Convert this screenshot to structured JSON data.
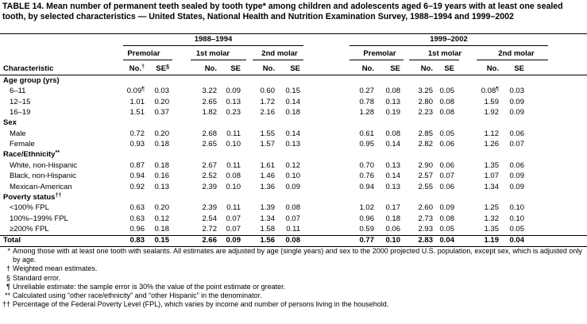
{
  "title": "TABLE 14. Mean number of permanent teeth sealed by tooth type* among children and adolescents aged 6–19 years with at least one sealed tooth, by selected characteristics — United States, National Health and Nutrition Examination Survey, 1988–1994 and 1999–2002",
  "periods": [
    {
      "label": "1988–1994",
      "tooth_types": [
        "Premolar",
        "1st molar",
        "2nd molar"
      ]
    },
    {
      "label": "1999–2002",
      "tooth_types": [
        "Premolar",
        "1st molar",
        "2nd molar"
      ]
    }
  ],
  "characteristic_header": "Characteristic",
  "columns": [
    {
      "label": "No.",
      "note": "†"
    },
    {
      "label": "SE",
      "note": "§"
    },
    {
      "label": "No."
    },
    {
      "label": "SE"
    },
    {
      "label": "No."
    },
    {
      "label": "SE"
    },
    {
      "label": "No."
    },
    {
      "label": "SE"
    },
    {
      "label": "No."
    },
    {
      "label": "SE"
    },
    {
      "label": "No."
    },
    {
      "label": "SE"
    }
  ],
  "sections": [
    {
      "heading": "Age group (yrs)",
      "rows": [
        {
          "label": "6–11",
          "cells": [
            {
              "value": "0.09",
              "note": "¶"
            },
            "0.03",
            "3.22",
            "0.09",
            "0.60",
            "0.15",
            "0.27",
            "0.08",
            "3.25",
            "0.05",
            {
              "value": "0.08",
              "note": "¶"
            },
            "0.03"
          ]
        },
        {
          "label": "12–15",
          "cells": [
            "1.01",
            "0.20",
            "2.65",
            "0.13",
            "1.72",
            "0.14",
            "0.78",
            "0.13",
            "2.80",
            "0.08",
            "1.59",
            "0.09"
          ]
        },
        {
          "label": "16–19",
          "cells": [
            "1.51",
            "0.37",
            "1.82",
            "0.23",
            "2.16",
            "0.18",
            "1.28",
            "0.19",
            "2.23",
            "0.08",
            "1.92",
            "0.09"
          ]
        }
      ]
    },
    {
      "heading": "Sex",
      "rows": [
        {
          "label": "Male",
          "cells": [
            "0.72",
            "0.20",
            "2.68",
            "0.11",
            "1.55",
            "0.14",
            "0.61",
            "0.08",
            "2.85",
            "0.05",
            "1.12",
            "0.06"
          ]
        },
        {
          "label": "Female",
          "cells": [
            "0.93",
            "0.18",
            "2.65",
            "0.10",
            "1.57",
            "0.13",
            "0.95",
            "0.14",
            "2.82",
            "0.06",
            "1.26",
            "0.07"
          ]
        }
      ]
    },
    {
      "heading": "Race/Ethnicity",
      "heading_note": "**",
      "rows": [
        {
          "label": "White, non-Hispanic",
          "cells": [
            "0.87",
            "0.18",
            "2.67",
            "0.11",
            "1.61",
            "0.12",
            "0.70",
            "0.13",
            "2.90",
            "0.06",
            "1.35",
            "0.06"
          ]
        },
        {
          "label": "Black, non-Hispanic",
          "cells": [
            "0.94",
            "0.16",
            "2.52",
            "0.08",
            "1.46",
            "0.10",
            "0.76",
            "0.14",
            "2.57",
            "0.07",
            "1.07",
            "0.09"
          ]
        },
        {
          "label": "Mexican-American",
          "cells": [
            "0.92",
            "0.13",
            "2.39",
            "0.10",
            "1.36",
            "0.09",
            "0.94",
            "0.13",
            "2.55",
            "0.06",
            "1.34",
            "0.09"
          ]
        }
      ]
    },
    {
      "heading": "Poverty status",
      "heading_note": "††",
      "rows": [
        {
          "label": "<100% FPL",
          "cells": [
            "0.63",
            "0.20",
            "2.39",
            "0.11",
            "1.39",
            "0.08",
            "1.02",
            "0.17",
            "2.60",
            "0.09",
            "1.25",
            "0.10"
          ]
        },
        {
          "label": "100%–199% FPL",
          "cells": [
            "0.63",
            "0.12",
            "2.54",
            "0.07",
            "1.34",
            "0.07",
            "0.96",
            "0.18",
            "2.73",
            "0.08",
            "1.32",
            "0.10"
          ]
        },
        {
          "label": "≥200% FPL",
          "cells": [
            "0.96",
            "0.18",
            "2.72",
            "0.07",
            "1.58",
            "0.11",
            "0.59",
            "0.06",
            "2.93",
            "0.05",
            "1.35",
            "0.05"
          ]
        }
      ]
    }
  ],
  "total": {
    "label": "Total",
    "cells": [
      "0.83",
      "0.15",
      "2.66",
      "0.09",
      "1.56",
      "0.08",
      "0.77",
      "0.10",
      "2.83",
      "0.04",
      "1.19",
      "0.04"
    ]
  },
  "footnotes": [
    {
      "mark": "*",
      "text": "Among those with at least one tooth with sealants. All estimates are adjusted by age (single years) and sex to the 2000 projected U.S. population, except sex, which is adjusted only by age."
    },
    {
      "mark": "†",
      "text": "Weighted mean estimates."
    },
    {
      "mark": "§",
      "text": "Standard error."
    },
    {
      "mark": "¶",
      "text": "Unreliable estimate: the sample error is 30% the value of the point estimate or greater."
    },
    {
      "mark": "**",
      "text": "Calculated using “other race/ethnicity” and “other Hispanic” in the denominator."
    },
    {
      "mark": "††",
      "text": "Percentage of the Federal Poverty Level (FPL), which varies by income and number of persons living in the household."
    }
  ]
}
